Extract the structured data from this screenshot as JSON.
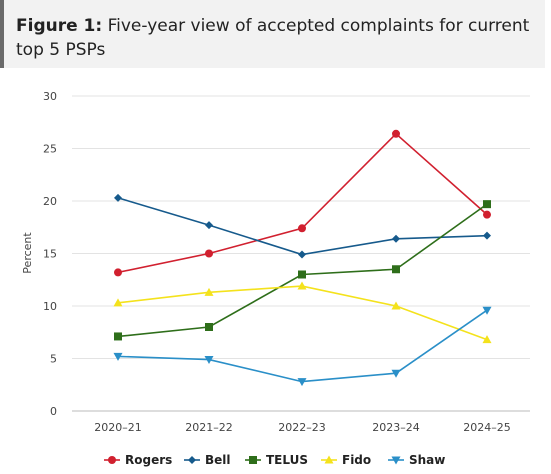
{
  "figure": {
    "label": "Figure 1:",
    "caption": "Five-year view of accepted complaints for current top 5 PSPs"
  },
  "chart_data": {
    "type": "line",
    "ylabel": "Percent",
    "xlabel": "",
    "ylim": [
      0,
      30
    ],
    "yticks": [
      0,
      5,
      10,
      15,
      20,
      25,
      30
    ],
    "grid": true,
    "legend": "bottom",
    "x": [
      "2020–21",
      "2021–22",
      "2022–23",
      "2023–24",
      "2024–25"
    ],
    "series": [
      {
        "name": "Rogers",
        "color": "#d1202f",
        "marker": "circle",
        "values": [
          13.2,
          15.0,
          17.4,
          26.4,
          18.7
        ]
      },
      {
        "name": "Bell",
        "color": "#165a8c",
        "marker": "diamond",
        "values": [
          20.3,
          17.7,
          14.9,
          16.4,
          16.7
        ]
      },
      {
        "name": "TELUS",
        "color": "#2e6e1a",
        "marker": "square",
        "values": [
          7.1,
          8.0,
          13.0,
          13.5,
          19.7
        ]
      },
      {
        "name": "Fido",
        "color": "#f4e21c",
        "marker": "triangle",
        "values": [
          10.3,
          11.3,
          11.9,
          10.0,
          6.8
        ]
      },
      {
        "name": "Shaw",
        "color": "#2a8fc8",
        "marker": "triangle-down",
        "values": [
          5.2,
          4.9,
          2.8,
          3.6,
          9.6
        ]
      }
    ]
  }
}
